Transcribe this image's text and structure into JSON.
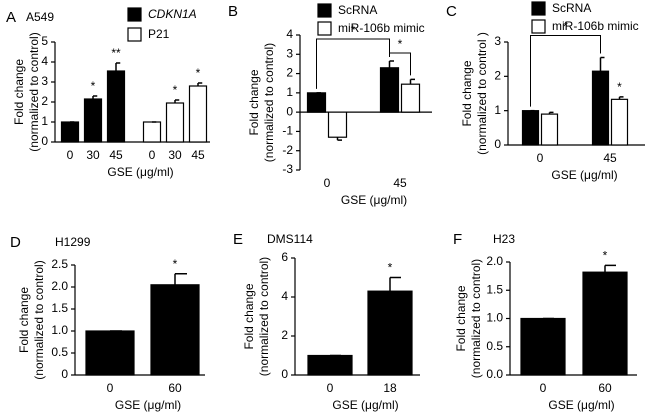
{
  "chart_data": [
    {
      "type": "bar",
      "panel": "A",
      "title": "A549",
      "categories": [
        "0",
        "30",
        "45",
        "0",
        "30",
        "45"
      ],
      "series": [
        {
          "name": "CDKN1A",
          "color": "#000000",
          "values": [
            1,
            2.15,
            3.55,
            null,
            null,
            null
          ],
          "errors": [
            0,
            0.15,
            0.4,
            null,
            null,
            null
          ],
          "stars": [
            null,
            "*",
            "**",
            null,
            null,
            null
          ]
        },
        {
          "name": "P21",
          "color": "#ffffff",
          "values": [
            null,
            null,
            null,
            1,
            1.95,
            2.8
          ],
          "errors": [
            null,
            null,
            null,
            0,
            0.15,
            0.15
          ],
          "stars": [
            null,
            null,
            null,
            null,
            "*",
            "*"
          ]
        }
      ],
      "ylim": [
        0,
        5
      ],
      "yticks": [
        0,
        1,
        2,
        3,
        4,
        5
      ],
      "ylabel": [
        "Fold change",
        "(normalized to control)"
      ],
      "xlabel": "GSE (μg/ml)"
    },
    {
      "type": "bar",
      "panel": "B",
      "categories": [
        "0",
        "45"
      ],
      "series": [
        {
          "name": "ScRNA",
          "color": "#000000",
          "values": [
            1,
            2.3
          ],
          "errors": [
            0,
            0.35
          ]
        },
        {
          "name": "miR-106b mimic",
          "color": "#ffffff",
          "values": [
            -1.3,
            1.45
          ],
          "errors": [
            0.15,
            0.25
          ]
        }
      ],
      "bracket_labels": [
        "*",
        "*"
      ],
      "ylim": [
        -3,
        4
      ],
      "yticks": [
        -3,
        -2,
        -1,
        0,
        1,
        2,
        3,
        4
      ],
      "ylabel": [
        "Fold change",
        "(normalized to control)"
      ],
      "xlabel": "GSE (μg/ml)"
    },
    {
      "type": "bar",
      "panel": "C",
      "categories": [
        "0",
        "45"
      ],
      "series": [
        {
          "name": "ScRNA",
          "color": "#000000",
          "values": [
            1,
            2.15
          ],
          "errors": [
            0,
            0.4
          ]
        },
        {
          "name": "miR-106b mimic",
          "color": "#ffffff",
          "values": [
            0.9,
            1.33
          ],
          "errors": [
            0.05,
            0.07
          ],
          "stars": [
            null,
            "*"
          ]
        }
      ],
      "bracket_labels": [
        "*"
      ],
      "ylim": [
        0,
        3
      ],
      "yticks": [
        0,
        1,
        2,
        3
      ],
      "ylabel": [
        "Fold change",
        "(normalized to control )"
      ],
      "xlabel": "GSE (μg/ml)"
    },
    {
      "type": "bar",
      "panel": "D",
      "title": "H1299",
      "categories": [
        "0",
        "60"
      ],
      "values": [
        1,
        2.05
      ],
      "errors": [
        0,
        0.25
      ],
      "stars": [
        null,
        "*"
      ],
      "color": "#000000",
      "ylim": [
        0,
        2.5
      ],
      "yticks": [
        0,
        0.5,
        {
          "value": 1,
          "label": "1.0"
        },
        1.5,
        {
          "value": 2,
          "label": "2.0"
        },
        2.5
      ],
      "ylabel": [
        "Fold change",
        "(normalized to control)"
      ],
      "xlabel": "GSE (μg/ml)"
    },
    {
      "type": "bar",
      "panel": "E",
      "title": "DMS114",
      "categories": [
        "0",
        "18"
      ],
      "values": [
        1,
        4.3
      ],
      "errors": [
        0,
        0.7
      ],
      "stars": [
        null,
        "*"
      ],
      "color": "#000000",
      "ylim": [
        0,
        6
      ],
      "yticks": [
        0,
        2,
        4,
        6
      ],
      "ylabel": [
        "Fold change",
        "(normalized to control)"
      ],
      "xlabel": "GSE (μg/ml)"
    },
    {
      "type": "bar",
      "panel": "F",
      "title": "H23",
      "categories": [
        "0",
        "60"
      ],
      "values": [
        1,
        1.82
      ],
      "errors": [
        0,
        0.12
      ],
      "stars": [
        null,
        "*"
      ],
      "color": "#000000",
      "ylim": [
        0,
        2.0
      ],
      "yticks": [
        {
          "value": 0,
          "label": "0.0"
        },
        0.5,
        {
          "value": 1,
          "label": "1.0"
        },
        1.5,
        {
          "value": 2,
          "label": "2.0"
        }
      ],
      "ylabel": [
        "Fold change",
        "(normalized to control)"
      ],
      "xlabel": "GSE (μg/ml)"
    }
  ]
}
